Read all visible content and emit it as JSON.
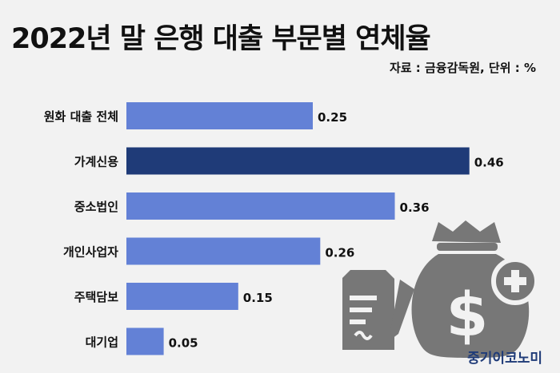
{
  "title": "2022년 말 은행 대출 부문별 연체율",
  "source": "자료 : 금융감독원, 단위 : %",
  "brand": "중기이코노미",
  "colors": {
    "bar": "#6381d6",
    "highlight": "#1f3b78",
    "icon": "#777777"
  },
  "icons": [
    "money-bag-icon",
    "dollar-sign-icon",
    "plus-icon",
    "document-icon",
    "pen-icon"
  ],
  "chart_data": {
    "type": "bar",
    "orientation": "horizontal",
    "title": "2022년 말 은행 대출 부문별 연체율",
    "categories": [
      "원화 대출 전체",
      "가계신용",
      "중소법인",
      "개인사업자",
      "주택담보",
      "대기업"
    ],
    "values": [
      0.25,
      0.46,
      0.36,
      0.26,
      0.15,
      0.05
    ],
    "value_labels": [
      "0.25",
      "0.46",
      "0.36",
      "0.26",
      "0.15",
      "0.05"
    ],
    "highlight_index": 1,
    "xlim": [
      0,
      0.5
    ],
    "grid": false,
    "legend": "none"
  }
}
